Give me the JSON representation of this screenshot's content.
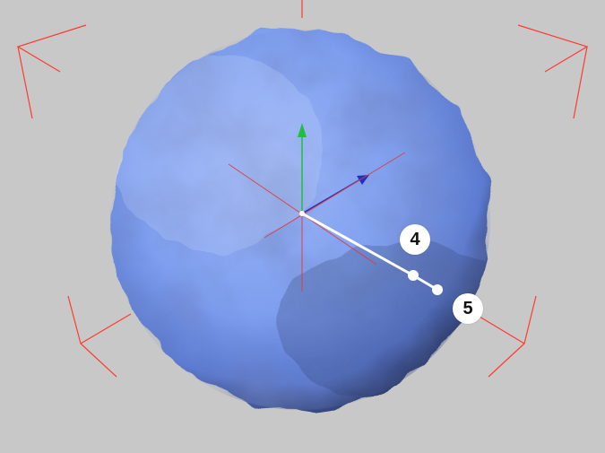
{
  "viewport": {
    "background": "#c8c8c8",
    "object": "sphere",
    "object_color": "#7f9fef",
    "bracket_color": "#ff3b30",
    "axis_x_color": "#e03a3a",
    "axis_y_color": "#1fbf3f",
    "axis_z_color": "#2030c0",
    "handle_color": "#ffffff"
  },
  "gizmo": {
    "icons": [
      "move-gizmo-icon"
    ]
  },
  "handles": {
    "point_4_label": "4",
    "point_5_label": "5"
  }
}
